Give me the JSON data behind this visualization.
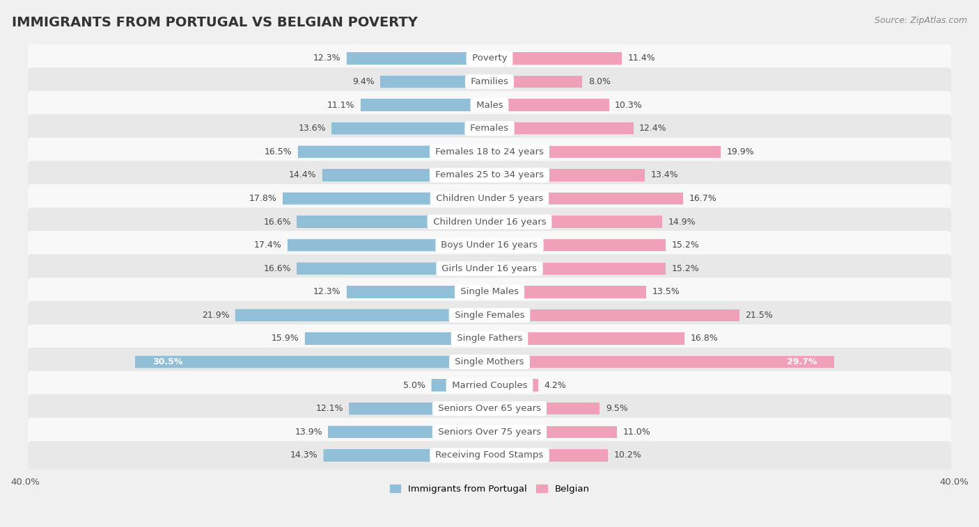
{
  "title": "IMMIGRANTS FROM PORTUGAL VS BELGIAN POVERTY",
  "source": "Source: ZipAtlas.com",
  "categories": [
    "Poverty",
    "Families",
    "Males",
    "Females",
    "Females 18 to 24 years",
    "Females 25 to 34 years",
    "Children Under 5 years",
    "Children Under 16 years",
    "Boys Under 16 years",
    "Girls Under 16 years",
    "Single Males",
    "Single Females",
    "Single Fathers",
    "Single Mothers",
    "Married Couples",
    "Seniors Over 65 years",
    "Seniors Over 75 years",
    "Receiving Food Stamps"
  ],
  "left_values": [
    12.3,
    9.4,
    11.1,
    13.6,
    16.5,
    14.4,
    17.8,
    16.6,
    17.4,
    16.6,
    12.3,
    21.9,
    15.9,
    30.5,
    5.0,
    12.1,
    13.9,
    14.3
  ],
  "right_values": [
    11.4,
    8.0,
    10.3,
    12.4,
    19.9,
    13.4,
    16.7,
    14.9,
    15.2,
    15.2,
    13.5,
    21.5,
    16.8,
    29.7,
    4.2,
    9.5,
    11.0,
    10.2
  ],
  "left_color": "#92bfd8",
  "right_color": "#f0a0b8",
  "bar_height": 0.52,
  "xlim": 40.0,
  "background_color": "#f0f0f0",
  "row_color_odd": "#e8e8e8",
  "row_color_even": "#f8f8f8",
  "legend_left": "Immigrants from Portugal",
  "legend_right": "Belgian",
  "title_fontsize": 14,
  "label_fontsize": 9.5,
  "value_fontsize": 9,
  "axis_label_fontsize": 9.5,
  "source_fontsize": 9
}
